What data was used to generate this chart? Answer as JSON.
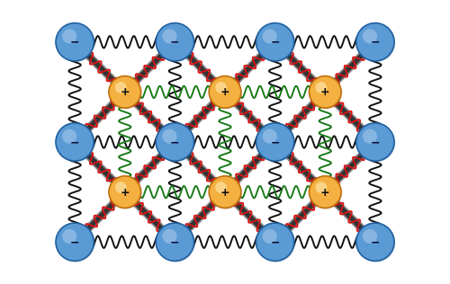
{
  "fig_width": 5.0,
  "fig_height": 3.16,
  "dpi": 100,
  "bg_color": "#ffffff",
  "blue_color": "#5B9BD5",
  "blue_edge": "#2060A0",
  "orange_color": "#F4B040",
  "orange_edge": "#C07010",
  "spring_black": "#111111",
  "spring_red": "#DD1111",
  "spring_green": "#1A7A1A",
  "stick_dark": "#333333",
  "stick_light": "#888888",
  "blue_r": 0.19,
  "orange_r": 0.16,
  "cell": 1.0,
  "n_blue_cols": 4,
  "n_blue_rows": 3,
  "n_orange_cols": 3,
  "n_orange_rows": 2
}
